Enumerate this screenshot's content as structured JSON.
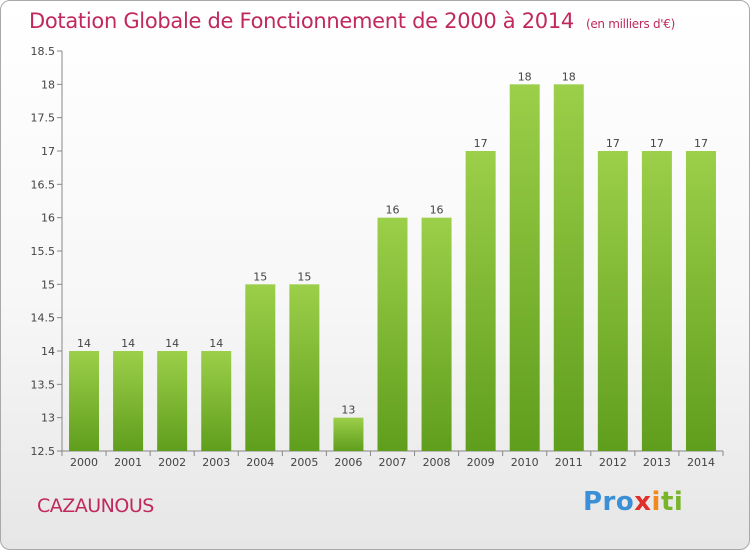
{
  "header": {
    "title": "Dotation Globale de Fonctionnement de 2000 à 2014",
    "subtitle": "(en milliers d'€)"
  },
  "footer": {
    "commune": "CAZAUNOUS",
    "logo": {
      "p1": "Pro",
      "p2": "x",
      "p3": "i",
      "p4": "ti"
    }
  },
  "colors": {
    "title": "#c0285e",
    "bar_light": "#9ccf4a",
    "bar_dark": "#5f9e1c"
  },
  "chart_data": {
    "type": "bar",
    "categories": [
      "2000",
      "2001",
      "2002",
      "2003",
      "2004",
      "2005",
      "2006",
      "2007",
      "2008",
      "2009",
      "2010",
      "2011",
      "2012",
      "2013",
      "2014"
    ],
    "values": [
      14,
      14,
      14,
      14,
      15,
      15,
      13,
      16,
      16,
      17,
      18,
      18,
      17,
      17,
      17
    ],
    "data_labels": [
      "14",
      "14",
      "14",
      "14",
      "15",
      "15",
      "13",
      "16",
      "16",
      "17",
      "18",
      "18",
      "17",
      "17",
      "17"
    ],
    "ylim": [
      12.5,
      18.5
    ],
    "yticks": [
      12.5,
      13,
      13.5,
      14,
      14.5,
      15,
      15.5,
      16,
      16.5,
      17,
      17.5,
      18,
      18.5
    ],
    "ytick_labels": [
      "12.5",
      "13",
      "13.5",
      "14",
      "14.5",
      "15",
      "15.5",
      "16",
      "16.5",
      "17",
      "17.5",
      "18",
      "18.5"
    ],
    "grid": false,
    "legend": "none"
  }
}
